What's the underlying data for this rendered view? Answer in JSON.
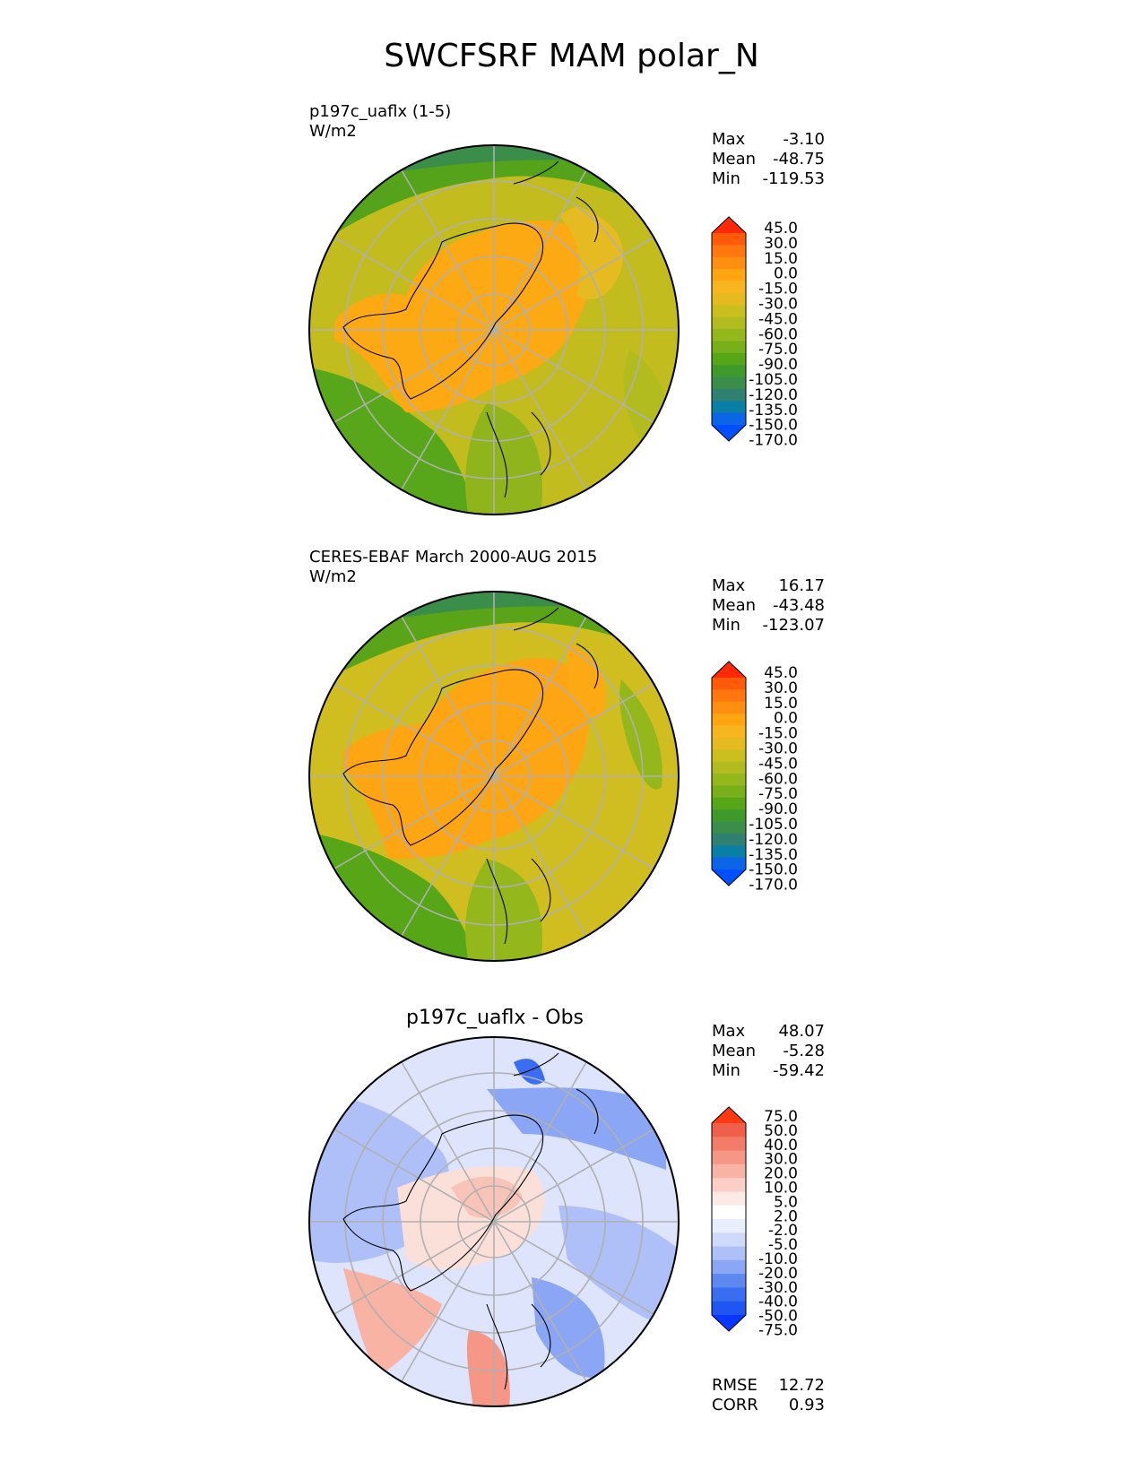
{
  "title": "SWCFSRF MAM polar_N",
  "colors": {
    "cbar1": [
      "#0050ff",
      "#0c64e8",
      "#0a7fa6",
      "#2f8070",
      "#3b8d4a",
      "#3f9a2c",
      "#56a618",
      "#78b01a",
      "#94b71c",
      "#b2bc1e",
      "#cbbf20",
      "#e6bb22",
      "#f9b51f",
      "#ffa512",
      "#ff8f10",
      "#ff770d",
      "#ff5a0a",
      "#ff2a05"
    ],
    "cbar2": [
      "#0a36ff",
      "#1f55f0",
      "#3a6ef2",
      "#5d88f2",
      "#8aa6f5",
      "#aec0f7",
      "#cfd9fa",
      "#e9eefc",
      "#ffffff",
      "#fde9e5",
      "#fbcfc5",
      "#f9b3a4",
      "#f69686",
      "#f37c69",
      "#ef5f49",
      "#ff3a12"
    ]
  },
  "panels": [
    {
      "title": "p197c_uaflx (1-5)",
      "units": "W/m2",
      "stats": {
        "max_label": "Max",
        "max": "-3.10",
        "mean_label": "Mean",
        "mean": "-48.75",
        "min_label": "Min",
        "min": "-119.53"
      },
      "levels": [
        "45.0",
        "30.0",
        "15.0",
        "0.0",
        "-15.0",
        "-30.0",
        "-45.0",
        "-60.0",
        "-75.0",
        "-90.0",
        "-105.0",
        "-120.0",
        "-135.0",
        "-150.0",
        "-170.0"
      ]
    },
    {
      "title": "CERES-EBAF March 2000-AUG 2015",
      "units": "W/m2",
      "stats": {
        "max_label": "Max",
        "max": "16.17",
        "mean_label": "Mean",
        "mean": "-43.48",
        "min_label": "Min",
        "min": "-123.07"
      },
      "levels": [
        "45.0",
        "30.0",
        "15.0",
        "0.0",
        "-15.0",
        "-30.0",
        "-45.0",
        "-60.0",
        "-75.0",
        "-90.0",
        "-105.0",
        "-120.0",
        "-135.0",
        "-150.0",
        "-170.0"
      ]
    },
    {
      "title": "p197c_uaflx - Obs",
      "stats": {
        "max_label": "Max",
        "max": "48.07",
        "mean_label": "Mean",
        "mean": "-5.28",
        "min_label": "Min",
        "min": "-59.42"
      },
      "levels": [
        "75.0",
        "50.0",
        "40.0",
        "30.0",
        "20.0",
        "10.0",
        "5.0",
        "2.0",
        "-2.0",
        "-5.0",
        "-10.0",
        "-20.0",
        "-30.0",
        "-40.0",
        "-50.0",
        "-75.0"
      ],
      "rmse_label": "RMSE",
      "rmse": "12.72",
      "corr_label": "CORR",
      "corr": "0.93"
    }
  ],
  "chart_data": [
    {
      "type": "heatmap",
      "projection": "north polar stereographic",
      "title": "p197c_uaflx (1-5)",
      "units": "W/m2",
      "stats": {
        "max": -3.1,
        "mean": -48.75,
        "min": -119.53
      },
      "colorbar_levels": [
        45.0,
        30.0,
        15.0,
        0.0,
        -15.0,
        -30.0,
        -45.0,
        -60.0,
        -75.0,
        -90.0,
        -105.0,
        -120.0,
        -135.0,
        -150.0,
        -170.0
      ]
    },
    {
      "type": "heatmap",
      "projection": "north polar stereographic",
      "title": "CERES-EBAF March 2000-AUG 2015",
      "units": "W/m2",
      "stats": {
        "max": 16.17,
        "mean": -43.48,
        "min": -123.07
      },
      "colorbar_levels": [
        45.0,
        30.0,
        15.0,
        0.0,
        -15.0,
        -30.0,
        -45.0,
        -60.0,
        -75.0,
        -90.0,
        -105.0,
        -120.0,
        -135.0,
        -150.0,
        -170.0
      ]
    },
    {
      "type": "heatmap",
      "projection": "north polar stereographic",
      "title": "p197c_uaflx - Obs",
      "stats": {
        "max": 48.07,
        "mean": -5.28,
        "min": -59.42,
        "rmse": 12.72,
        "corr": 0.93
      },
      "colorbar_levels": [
        75.0,
        50.0,
        40.0,
        30.0,
        20.0,
        10.0,
        5.0,
        2.0,
        -2.0,
        -5.0,
        -10.0,
        -20.0,
        -30.0,
        -40.0,
        -50.0,
        -75.0
      ]
    }
  ]
}
